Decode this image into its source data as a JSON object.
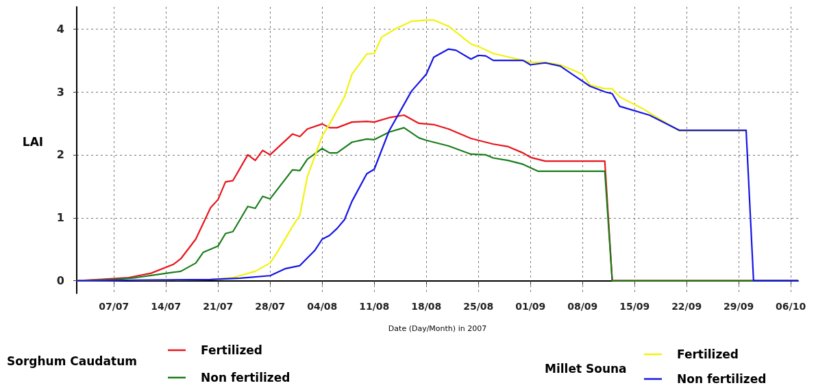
{
  "chart_data": {
    "type": "line",
    "xlabel": "Date (Day/Month) in 2007",
    "ylabel": "LAI",
    "annotations": [
      "Sorghum Caudatum",
      "Millet Souna"
    ],
    "xlim": [
      "2007-07-02",
      "2007-10-07"
    ],
    "xticks": [
      {
        "value": "2007-07-07",
        "label": "07/07"
      },
      {
        "value": "2007-07-14",
        "label": "14/07"
      },
      {
        "value": "2007-07-21",
        "label": "21/07"
      },
      {
        "value": "2007-07-28",
        "label": "28/07"
      },
      {
        "value": "2007-08-04",
        "label": "04/08"
      },
      {
        "value": "2007-08-11",
        "label": "11/08"
      },
      {
        "value": "2007-08-18",
        "label": "18/08"
      },
      {
        "value": "2007-08-25",
        "label": "25/08"
      },
      {
        "value": "2007-09-01",
        "label": "01/09"
      },
      {
        "value": "2007-09-08",
        "label": "08/09"
      },
      {
        "value": "2007-09-15",
        "label": "15/09"
      },
      {
        "value": "2007-09-22",
        "label": "22/09"
      },
      {
        "value": "2007-09-29",
        "label": "29/09"
      },
      {
        "value": "2007-10-06",
        "label": "06/10"
      }
    ],
    "ylim": [
      -0.2,
      4.35
    ],
    "yticks": [
      0,
      1,
      2,
      3,
      4
    ],
    "grid": true,
    "legend": "bottom",
    "series": [
      {
        "name": "Fertilized",
        "color": "#e8141c",
        "x": [
          "2007-07-02",
          "2007-07-05",
          "2007-07-09",
          "2007-07-12",
          "2007-07-15",
          "2007-07-16",
          "2007-07-18",
          "2007-07-20",
          "2007-07-21",
          "2007-07-22",
          "2007-07-23",
          "2007-07-25",
          "2007-07-26",
          "2007-07-27",
          "2007-07-28",
          "2007-07-31",
          "2007-08-01",
          "2007-08-02",
          "2007-08-04",
          "2007-08-05",
          "2007-08-06",
          "2007-08-08",
          "2007-08-10",
          "2007-08-11",
          "2007-08-13",
          "2007-08-15",
          "2007-08-17",
          "2007-08-19",
          "2007-08-21",
          "2007-08-24",
          "2007-08-27",
          "2007-08-29",
          "2007-08-31",
          "2007-09-01",
          "2007-09-03",
          "2007-09-11",
          "2007-09-12",
          "2007-10-07"
        ],
        "values": [
          0,
          0.02,
          0.05,
          0.12,
          0.26,
          0.35,
          0.66,
          1.16,
          1.29,
          1.57,
          1.59,
          2.0,
          1.91,
          2.07,
          2.0,
          2.33,
          2.29,
          2.41,
          2.49,
          2.43,
          2.43,
          2.52,
          2.53,
          2.52,
          2.59,
          2.63,
          2.5,
          2.48,
          2.41,
          2.26,
          2.17,
          2.13,
          2.03,
          1.96,
          1.9,
          1.9,
          0,
          0
        ]
      },
      {
        "name": "Non fertilized",
        "color": "#1a7d1a",
        "x": [
          "2007-07-02",
          "2007-07-07",
          "2007-07-10",
          "2007-07-13",
          "2007-07-16",
          "2007-07-18",
          "2007-07-19",
          "2007-07-21",
          "2007-07-22",
          "2007-07-23",
          "2007-07-25",
          "2007-07-26",
          "2007-07-27",
          "2007-07-28",
          "2007-07-31",
          "2007-08-01",
          "2007-08-02",
          "2007-08-04",
          "2007-08-05",
          "2007-08-06",
          "2007-08-08",
          "2007-08-10",
          "2007-08-11",
          "2007-08-13",
          "2007-08-15",
          "2007-08-17",
          "2007-08-18",
          "2007-08-21",
          "2007-08-24",
          "2007-08-26",
          "2007-08-27",
          "2007-08-29",
          "2007-08-31",
          "2007-09-02",
          "2007-09-11",
          "2007-09-12",
          "2007-10-07"
        ],
        "values": [
          0,
          0.02,
          0.05,
          0.1,
          0.15,
          0.28,
          0.45,
          0.55,
          0.75,
          0.78,
          1.18,
          1.15,
          1.34,
          1.3,
          1.76,
          1.75,
          1.93,
          2.1,
          2.03,
          2.03,
          2.2,
          2.25,
          2.24,
          2.36,
          2.43,
          2.27,
          2.23,
          2.14,
          2.01,
          2.0,
          1.95,
          1.91,
          1.85,
          1.74,
          1.74,
          0,
          0
        ]
      },
      {
        "name": "Fertilized",
        "color": "#f2f20c",
        "x": [
          "2007-07-02",
          "2007-07-20",
          "2007-07-23",
          "2007-07-26",
          "2007-07-28",
          "2007-07-29",
          "2007-07-31",
          "2007-08-01",
          "2007-08-02",
          "2007-08-04",
          "2007-08-05",
          "2007-08-07",
          "2007-08-08",
          "2007-08-10",
          "2007-08-11",
          "2007-08-12",
          "2007-08-14",
          "2007-08-16",
          "2007-08-18",
          "2007-08-19",
          "2007-08-21",
          "2007-08-24",
          "2007-08-25",
          "2007-08-27",
          "2007-08-31",
          "2007-09-01",
          "2007-09-03",
          "2007-09-05",
          "2007-09-08",
          "2007-09-09",
          "2007-09-11",
          "2007-09-12",
          "2007-09-13",
          "2007-09-16",
          "2007-09-21",
          "2007-09-30"
        ],
        "values": [
          0,
          0.02,
          0.05,
          0.15,
          0.28,
          0.46,
          0.86,
          1.04,
          1.65,
          2.3,
          2.49,
          2.92,
          3.28,
          3.6,
          3.61,
          3.87,
          4.01,
          4.12,
          4.14,
          4.14,
          4.04,
          3.76,
          3.72,
          3.61,
          3.5,
          3.47,
          3.47,
          3.43,
          3.28,
          3.11,
          3.05,
          3.05,
          2.92,
          2.74,
          2.38,
          2.38
        ]
      },
      {
        "name": "Non fertilized",
        "color": "#1414e6",
        "x": [
          "2007-07-02",
          "2007-07-20",
          "2007-07-24",
          "2007-07-28",
          "2007-07-30",
          "2007-08-01",
          "2007-08-03",
          "2007-08-04",
          "2007-08-05",
          "2007-08-06",
          "2007-08-07",
          "2007-08-08",
          "2007-08-10",
          "2007-08-11",
          "2007-08-13",
          "2007-08-16",
          "2007-08-18",
          "2007-08-19",
          "2007-08-21",
          "2007-08-22",
          "2007-08-24",
          "2007-08-25",
          "2007-08-26",
          "2007-08-27",
          "2007-08-31",
          "2007-09-01",
          "2007-09-03",
          "2007-09-05",
          "2007-09-07",
          "2007-09-09",
          "2007-09-11",
          "2007-09-12",
          "2007-09-13",
          "2007-09-17",
          "2007-09-21",
          "2007-09-30",
          "2007-10-01",
          "2007-10-07"
        ],
        "values": [
          0,
          0.02,
          0.04,
          0.08,
          0.19,
          0.24,
          0.48,
          0.66,
          0.72,
          0.83,
          0.97,
          1.26,
          1.7,
          1.77,
          2.38,
          3.01,
          3.28,
          3.55,
          3.68,
          3.66,
          3.52,
          3.58,
          3.57,
          3.5,
          3.5,
          3.43,
          3.46,
          3.41,
          3.25,
          3.09,
          3.0,
          2.97,
          2.77,
          2.63,
          2.39,
          2.39,
          0,
          0
        ]
      }
    ]
  }
}
